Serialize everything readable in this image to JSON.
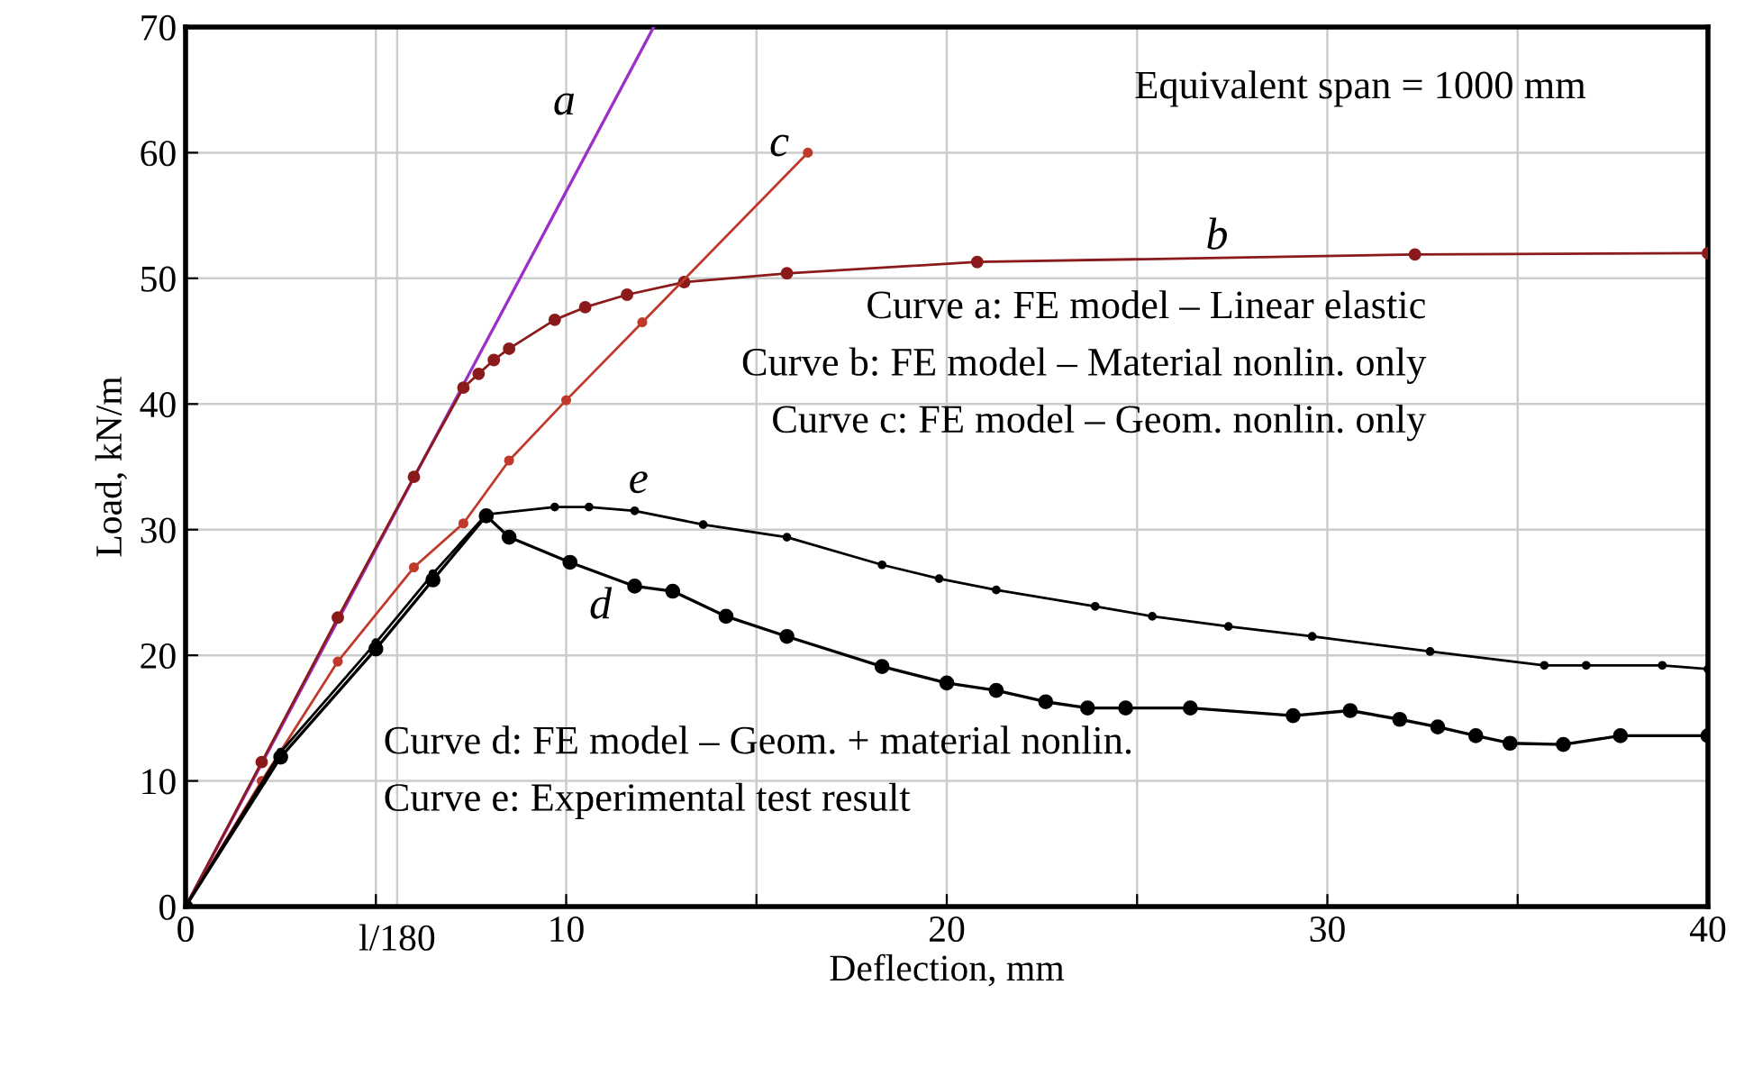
{
  "chart_data": {
    "type": "line",
    "xlabel": "Deflection, mm",
    "ylabel": "Load, kN/m",
    "xlim": [
      0,
      40
    ],
    "ylim": [
      0,
      70
    ],
    "xticks": [
      0,
      {
        "value": 5,
        "label": null
      },
      10,
      {
        "value": 15,
        "label": null
      },
      20,
      {
        "value": 25,
        "label": null
      },
      30,
      {
        "value": 35,
        "label": null
      },
      40
    ],
    "yticks": [
      0,
      10,
      20,
      30,
      40,
      50,
      60,
      70
    ],
    "ref_lines": [
      {
        "axis": "x",
        "value": 5.56,
        "label": "l/180",
        "color": "#cccccc"
      }
    ],
    "grid": true,
    "legend": false,
    "line_style": "solid",
    "series": [
      {
        "name": "a",
        "color": "#9b30c8",
        "marker": "none",
        "x": [
          0,
          12.3
        ],
        "values": [
          0,
          70
        ]
      },
      {
        "name": "b",
        "color": "#8b1a1a",
        "marker": "circle",
        "x": [
          0,
          2,
          4,
          6,
          7.3,
          7.7,
          8.1,
          8.5,
          9.7,
          10.5,
          11.6,
          13.1,
          15.8,
          20.8,
          32.3,
          40
        ],
        "values": [
          0,
          11.5,
          23,
          34.2,
          41.3,
          42.4,
          43.5,
          44.4,
          46.7,
          47.7,
          48.7,
          49.7,
          50.4,
          51.3,
          51.9,
          52.0
        ]
      },
      {
        "name": "c",
        "color": "#c0392b",
        "marker": "circle",
        "x": [
          0,
          2,
          4,
          6,
          7.3,
          8.5,
          10,
          12.0,
          16.35
        ],
        "values": [
          0,
          10,
          19.5,
          27,
          30.5,
          35.5,
          40.3,
          46.5,
          60
        ]
      },
      {
        "name": "d",
        "color": "#000000",
        "marker": "circle",
        "x": [
          0,
          2.5,
          5,
          6.5,
          7.9,
          8.5,
          10.1,
          11.8,
          12.8,
          14.2,
          15.8,
          18.3,
          20.0,
          21.3,
          22.6,
          23.7,
          24.7,
          26.4,
          29.1,
          30.6,
          31.9,
          32.9,
          33.9,
          34.8,
          36.2,
          37.7,
          40
        ],
        "values": [
          0,
          11.9,
          20.5,
          26,
          31.1,
          29.4,
          27.4,
          25.5,
          25.1,
          23.1,
          21.5,
          19.1,
          17.8,
          17.2,
          16.3,
          15.8,
          15.8,
          15.8,
          15.2,
          15.6,
          14.9,
          14.3,
          13.6,
          13.0,
          12.9,
          13.6,
          13.6
        ]
      },
      {
        "name": "e",
        "color": "#000000",
        "marker": "circle",
        "x": [
          0,
          2.5,
          5,
          6.5,
          7.9,
          9.7,
          10.6,
          11.8,
          13.6,
          15.8,
          18.3,
          19.8,
          21.3,
          23.9,
          25.4,
          27.4,
          29.6,
          32.7,
          35.7,
          36.8,
          38.8,
          40
        ],
        "values": [
          0,
          12.3,
          21,
          26.5,
          31.2,
          31.8,
          31.8,
          31.5,
          30.4,
          29.4,
          27.2,
          26.1,
          25.2,
          23.9,
          23.1,
          22.3,
          21.5,
          20.3,
          19.2,
          19.2,
          19.2,
          18.9
        ]
      }
    ],
    "annotations": [
      "Equivalent span = 1000 mm",
      "Curve a: FE model – Linear elastic",
      "Curve b: FE model – Material nonlin. only",
      "Curve c: FE model – Geom. nonlin. only",
      "Curve d: FE model – Geom. + material nonlin.",
      "Curve e: Experimental test result"
    ]
  }
}
